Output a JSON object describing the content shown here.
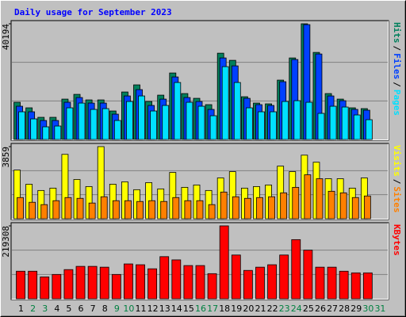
{
  "title": "Daily usage for September 2023",
  "legend_separator": "/",
  "chart_data": [
    {
      "type": "bar",
      "ylim": [
        0,
        40194
      ],
      "yticks": [
        40194
      ],
      "series": [
        {
          "name": "Hits",
          "color": "#00805c",
          "values": [
            12925,
            11000,
            7700,
            7700,
            14025,
            15675,
            13750,
            13750,
            9900,
            16500,
            18975,
            13200,
            15400,
            23100,
            15950,
            14300,
            12100,
            29975,
            27500,
            14850,
            12650,
            12375,
            20625,
            28325,
            40194,
            30250,
            15950,
            14025,
            11000,
            10725,
            null
          ]
        },
        {
          "name": "Files",
          "color": "#0040ff",
          "values": [
            11550,
            9625,
            6600,
            6600,
            12925,
            14575,
            12650,
            12650,
            8800,
            15125,
            17325,
            11825,
            14025,
            21725,
            14575,
            13200,
            10450,
            28325,
            25575,
            14300,
            12100,
            11825,
            20075,
            27775,
            39900,
            29700,
            15125,
            13475,
            10450,
            10175,
            null
          ]
        },
        {
          "name": "Pages",
          "color": "#00e0ff",
          "values": [
            9625,
            7150,
            4400,
            4675,
            11000,
            12650,
            10450,
            10725,
            6600,
            13200,
            15125,
            9900,
            11825,
            19800,
            12925,
            11550,
            8250,
            25300,
            19800,
            11000,
            9625,
            9625,
            13200,
            13475,
            12925,
            9075,
            11550,
            11275,
            8525,
            6875,
            null
          ]
        }
      ]
    },
    {
      "type": "bar",
      "ylim": [
        0,
        3859
      ],
      "yticks": [
        3859
      ],
      "series": [
        {
          "name": "Visits",
          "color": "#ffff00",
          "values": [
            2604,
            1848,
            1512,
            1638,
            3444,
            2100,
            1722,
            3859,
            1848,
            1974,
            1554,
            1932,
            1596,
            2478,
            1680,
            1806,
            1512,
            2184,
            2520,
            1638,
            1722,
            1806,
            2814,
            2520,
            3402,
            3024,
            2142,
            2142,
            1638,
            2184,
            null
          ]
        },
        {
          "name": "Sites",
          "color": "#ff8000",
          "values": [
            1134,
            882,
            756,
            966,
            1134,
            1092,
            840,
            1176,
            966,
            966,
            924,
            966,
            924,
            1134,
            966,
            966,
            756,
            1428,
            1176,
            1092,
            1134,
            1176,
            1386,
            1680,
            2352,
            2142,
            1470,
            1386,
            1134,
            1218,
            null
          ]
        }
      ]
    },
    {
      "type": "bar",
      "ylim": [
        0,
        219308
      ],
      "yticks": [
        219308
      ],
      "categories": [
        "1",
        "2",
        "3",
        "4",
        "5",
        "6",
        "7",
        "8",
        "9",
        "10",
        "11",
        "12",
        "13",
        "14",
        "15",
        "16",
        "17",
        "18",
        "19",
        "20",
        "21",
        "22",
        "23",
        "24",
        "25",
        "26",
        "27",
        "28",
        "29",
        "30",
        "31"
      ],
      "category_colors": [
        "#000000",
        "#008040",
        "#008040",
        "#000000",
        "#000000",
        "#000000",
        "#000000",
        "#000000",
        "#008040",
        "#008040",
        "#000000",
        "#000000",
        "#000000",
        "#000000",
        "#000000",
        "#008040",
        "#008040",
        "#000000",
        "#000000",
        "#000000",
        "#000000",
        "#000000",
        "#008040",
        "#008040",
        "#000000",
        "#000000",
        "#000000",
        "#000000",
        "#000000",
        "#008040",
        "#008040"
      ],
      "series": [
        {
          "name": "KBytes",
          "color": "#ff0000",
          "values": [
            82858,
            82858,
            65799,
            73110,
            87732,
            97480,
            97480,
            95043,
            73110,
            104791,
            102354,
            90169,
            126724,
            116976,
            99917,
            99917,
            75547,
            219308,
            131598,
            85295,
            95043,
            102354,
            131598,
            177901,
            146220,
            95043,
            95043,
            82858,
            77984,
            77984,
            null
          ]
        }
      ]
    }
  ]
}
